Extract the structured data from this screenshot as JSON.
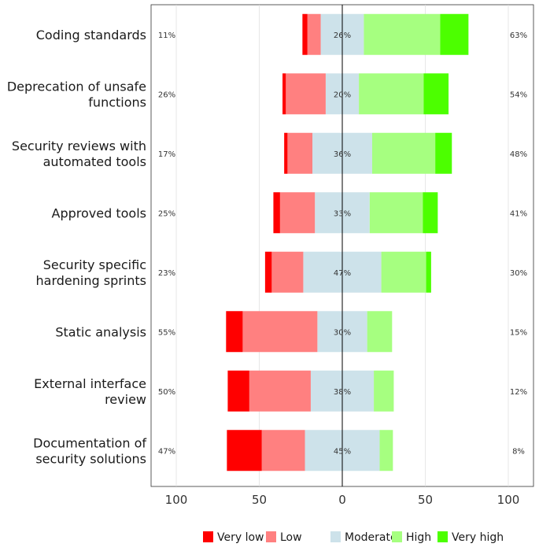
{
  "chart_data": {
    "type": "bar",
    "subtype": "diverging-stacked-likert",
    "categories": [
      "Coding standards",
      "Deprecation of unsafe functions",
      "Security reviews with automated tools",
      "Approved tools",
      "Security specific hardening sprints",
      "Static analysis",
      "External interface review",
      "Documentation of security solutions"
    ],
    "category_lines": [
      [
        "Coding standards"
      ],
      [
        "Deprecation of unsafe",
        "functions"
      ],
      [
        "Security reviews with",
        "automated tools"
      ],
      [
        "Approved tools"
      ],
      [
        "Security specific",
        "hardening sprints"
      ],
      [
        "Static analysis"
      ],
      [
        "External interface",
        "review"
      ],
      [
        "Documentation of",
        "security solutions"
      ]
    ],
    "levels": [
      "Very low",
      "Low",
      "Moderate",
      "High",
      "Very high"
    ],
    "colors": [
      "#ff0000",
      "#ff8080",
      "#cde2ea",
      "#a6ff80",
      "#4cff00"
    ],
    "series": [
      {
        "name": "Very low",
        "values": [
          3,
          2,
          2,
          4,
          4,
          10,
          13,
          21
        ]
      },
      {
        "name": "Low",
        "values": [
          8,
          24,
          15,
          21,
          19,
          45,
          37,
          26
        ]
      },
      {
        "name": "Moderate",
        "values": [
          26,
          20,
          36,
          33,
          47,
          30,
          38,
          45
        ]
      },
      {
        "name": "High",
        "values": [
          46,
          39,
          38,
          32,
          27,
          15,
          12,
          8
        ]
      },
      {
        "name": "Very high",
        "values": [
          17,
          15,
          10,
          9,
          3,
          0,
          0,
          0
        ]
      }
    ],
    "left_labels": [
      "11%",
      "26%",
      "17%",
      "25%",
      "23%",
      "55%",
      "50%",
      "47%"
    ],
    "center_labels": [
      "26%",
      "20%",
      "36%",
      "33%",
      "47%",
      "30%",
      "38%",
      "45%"
    ],
    "right_labels": [
      "63%",
      "54%",
      "48%",
      "41%",
      "30%",
      "15%",
      "12%",
      "8%"
    ],
    "x_ticks": [
      -100,
      -50,
      0,
      50,
      100
    ],
    "x_tick_labels": [
      "100",
      "50",
      "0",
      "50",
      "100"
    ],
    "xlim": [
      -100,
      100
    ],
    "title": "",
    "xlabel": "",
    "ylabel": "",
    "legend_position": "bottom"
  }
}
